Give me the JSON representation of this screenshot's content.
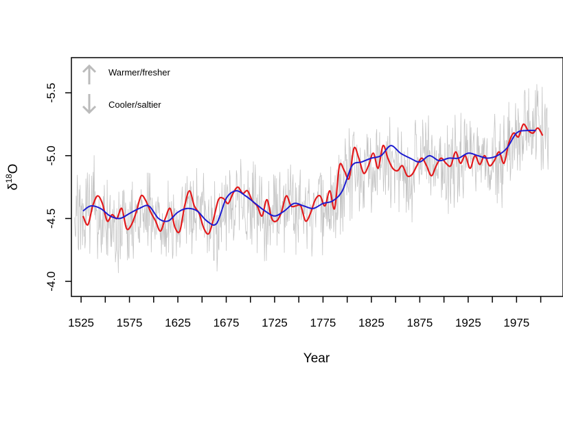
{
  "chart_data": {
    "type": "line",
    "title": "",
    "xlabel": "Year",
    "ylabel": {
      "main": "δ",
      "superscript": "18",
      "suffix": "O"
    },
    "xlim": [
      1515,
      2023
    ],
    "ylim_top_to_bottom": [
      -5.78,
      -3.88
    ],
    "y_axis_reversed": true,
    "x_ticks": [
      1525,
      1575,
      1625,
      1675,
      1725,
      1775,
      1825,
      1875,
      1925,
      1975
    ],
    "x_tick_labels": [
      "1525",
      "1575",
      "1625",
      "1675",
      "1725",
      "1775",
      "1825",
      "1875",
      "1925",
      "1975"
    ],
    "x_minor_ticks": [
      1550,
      1600,
      1650,
      1700,
      1750,
      1800,
      1850,
      1900,
      1950,
      2000
    ],
    "y_ticks": [
      -5.5,
      -5.0,
      -4.5,
      -4.0
    ],
    "y_tick_labels": [
      "-5.5",
      "-5.0",
      "-4.5",
      "-4.0"
    ],
    "grid": false,
    "annotations": [
      {
        "text": "Warmer/fresher",
        "arrow": "up",
        "color": "#bbbbbb"
      },
      {
        "text": "Cooler/saltier",
        "arrow": "down",
        "color": "#bbbbbb"
      }
    ],
    "series": [
      {
        "style": "annual",
        "color": "#c4c4c4",
        "x": [
          1518,
          1528,
          1538,
          1548,
          1558,
          1568,
          1578,
          1588,
          1598,
          1608,
          1618,
          1628,
          1638,
          1648,
          1658,
          1668,
          1678,
          1688,
          1698,
          1708,
          1718,
          1728,
          1738,
          1748,
          1758,
          1768,
          1778,
          1788,
          1798,
          1808,
          1818,
          1828,
          1838,
          1848,
          1858,
          1868,
          1878,
          1888,
          1898,
          1908,
          1918,
          1928,
          1938,
          1948,
          1958,
          1968,
          1978,
          1988,
          1998,
          2008
        ],
        "y": [
          -4.55,
          -4.5,
          -4.62,
          -4.5,
          -4.47,
          -4.45,
          -4.45,
          -4.6,
          -4.55,
          -4.5,
          -4.48,
          -4.5,
          -4.62,
          -4.58,
          -4.5,
          -4.4,
          -4.65,
          -4.68,
          -4.6,
          -4.55,
          -4.52,
          -4.5,
          -4.6,
          -4.58,
          -4.55,
          -4.6,
          -4.58,
          -4.6,
          -4.82,
          -4.85,
          -4.88,
          -4.92,
          -4.98,
          -4.94,
          -4.86,
          -4.82,
          -5.0,
          -4.96,
          -4.9,
          -4.93,
          -5.0,
          -5.0,
          -4.98,
          -4.96,
          -4.97,
          -5.05,
          -5.15,
          -5.2,
          -5.22,
          -5.18
        ],
        "band_halfwidth": 0.28
      },
      {
        "style": "decadal",
        "color": "#e31a1c",
        "x": [
          1527,
          1532,
          1537,
          1542,
          1547,
          1552,
          1557,
          1562,
          1567,
          1572,
          1577,
          1582,
          1587,
          1592,
          1597,
          1602,
          1607,
          1612,
          1617,
          1622,
          1627,
          1632,
          1637,
          1642,
          1647,
          1652,
          1657,
          1662,
          1667,
          1672,
          1677,
          1682,
          1687,
          1692,
          1697,
          1702,
          1707,
          1712,
          1717,
          1722,
          1727,
          1732,
          1737,
          1742,
          1747,
          1752,
          1757,
          1762,
          1767,
          1772,
          1777,
          1782,
          1787,
          1792,
          1797,
          1802,
          1807,
          1812,
          1817,
          1822,
          1827,
          1832,
          1837,
          1842,
          1847,
          1852,
          1857,
          1862,
          1867,
          1872,
          1877,
          1882,
          1887,
          1892,
          1897,
          1902,
          1907,
          1912,
          1917,
          1922,
          1927,
          1932,
          1937,
          1942,
          1947,
          1952,
          1957,
          1962,
          1967,
          1972,
          1977,
          1982,
          1987,
          1992,
          1997,
          2002
        ],
        "y": [
          -4.52,
          -4.45,
          -4.6,
          -4.68,
          -4.62,
          -4.48,
          -4.53,
          -4.5,
          -4.58,
          -4.42,
          -4.45,
          -4.55,
          -4.68,
          -4.64,
          -4.55,
          -4.48,
          -4.4,
          -4.5,
          -4.58,
          -4.43,
          -4.4,
          -4.6,
          -4.72,
          -4.6,
          -4.54,
          -4.42,
          -4.38,
          -4.5,
          -4.65,
          -4.66,
          -4.62,
          -4.7,
          -4.75,
          -4.7,
          -4.72,
          -4.64,
          -4.6,
          -4.52,
          -4.65,
          -4.5,
          -4.48,
          -4.55,
          -4.68,
          -4.6,
          -4.6,
          -4.6,
          -4.48,
          -4.54,
          -4.65,
          -4.68,
          -4.6,
          -4.72,
          -4.58,
          -4.92,
          -4.88,
          -4.82,
          -5.06,
          -4.98,
          -4.86,
          -4.92,
          -5.02,
          -4.9,
          -5.08,
          -4.98,
          -4.9,
          -4.88,
          -4.92,
          -4.84,
          -4.85,
          -4.92,
          -4.98,
          -4.92,
          -4.84,
          -4.92,
          -4.98,
          -4.94,
          -4.92,
          -5.03,
          -4.94,
          -5.0,
          -4.9,
          -5.0,
          -4.93,
          -5.0,
          -4.92,
          -4.96,
          -5.03,
          -4.94,
          -5.1,
          -5.18,
          -5.15,
          -5.25,
          -5.2,
          -5.18,
          -5.22,
          -5.16
        ]
      },
      {
        "style": "smoothed",
        "color": "#1c1cd0",
        "x": [
          1527,
          1535,
          1545,
          1555,
          1565,
          1575,
          1585,
          1595,
          1605,
          1615,
          1625,
          1635,
          1645,
          1655,
          1665,
          1675,
          1685,
          1695,
          1705,
          1715,
          1725,
          1735,
          1745,
          1755,
          1765,
          1775,
          1785,
          1795,
          1805,
          1815,
          1825,
          1835,
          1845,
          1855,
          1865,
          1875,
          1885,
          1895,
          1905,
          1915,
          1925,
          1935,
          1945,
          1955,
          1965,
          1975,
          1985,
          1995
        ],
        "y": [
          -4.56,
          -4.6,
          -4.58,
          -4.52,
          -4.5,
          -4.54,
          -4.58,
          -4.6,
          -4.5,
          -4.48,
          -4.55,
          -4.58,
          -4.56,
          -4.48,
          -4.46,
          -4.66,
          -4.72,
          -4.68,
          -4.62,
          -4.56,
          -4.52,
          -4.56,
          -4.62,
          -4.6,
          -4.58,
          -4.62,
          -4.64,
          -4.72,
          -4.92,
          -4.95,
          -4.98,
          -5.0,
          -5.08,
          -5.02,
          -4.98,
          -4.95,
          -5.0,
          -4.96,
          -4.98,
          -4.98,
          -5.02,
          -5.0,
          -4.98,
          -5.0,
          -5.06,
          -5.18,
          -5.2,
          -5.2
        ]
      }
    ]
  }
}
